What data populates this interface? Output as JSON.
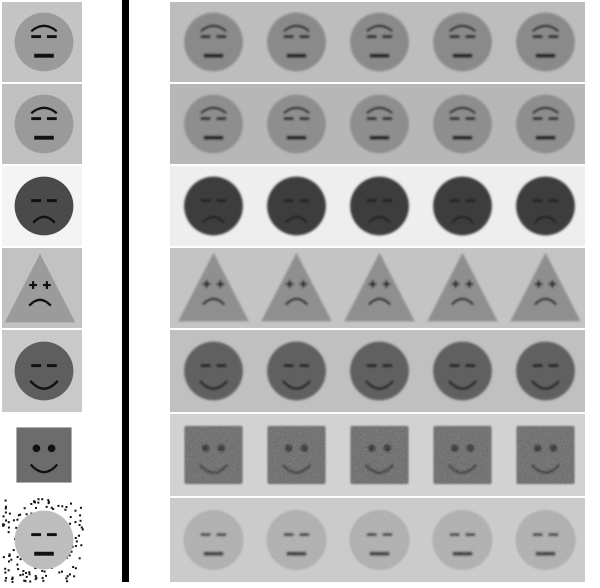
{
  "colors": {
    "page_background": "#ffffff",
    "divider": "#000000"
  },
  "rows": [
    {
      "row": 1,
      "template": {
        "shape": "circle",
        "background": "#c4c4c4",
        "fill": "#9a9a9a",
        "eyes": "lines",
        "mouth": "flat-bar",
        "brows": "arched"
      },
      "reconstructions": {
        "count": 5,
        "background": "#bdbdbd",
        "fill": "#8a8a8a",
        "blur": 1.0
      }
    },
    {
      "row": 2,
      "template": {
        "shape": "circle",
        "background": "#c0c0c0",
        "fill": "#9a9a9a",
        "eyes": "lines",
        "mouth": "flat-bar",
        "brows": "arched"
      },
      "reconstructions": {
        "count": 5,
        "background": "#b7b7b7",
        "fill": "#8e8e8e",
        "blur": 1.0
      }
    },
    {
      "row": 3,
      "template": {
        "shape": "circle",
        "background": "#f4f4f4",
        "fill": "#4a4a4a",
        "eyes": "lines",
        "mouth": "frown",
        "brows": "none"
      },
      "reconstructions": {
        "count": 5,
        "background": "#eeeeee",
        "fill": "#3e3e3e",
        "blur": 1.0
      }
    },
    {
      "row": 4,
      "template": {
        "shape": "triangle",
        "background": "#c2c2c2",
        "fill": "#9b9b9b",
        "eyes": "crosses",
        "mouth": "frown",
        "brows": "none"
      },
      "reconstructions": {
        "count": 5,
        "background": "#c4c4c4",
        "fill": "#8f8f8f",
        "blur": 1.1
      }
    },
    {
      "row": 5,
      "template": {
        "shape": "circle",
        "background": "#c9c9c9",
        "fill": "#5e5e5e",
        "eyes": "lines",
        "mouth": "smile",
        "brows": "none"
      },
      "reconstructions": {
        "count": 5,
        "background": "#c0c0c0",
        "fill": "#616161",
        "blur": 1.0
      }
    },
    {
      "row": 6,
      "template": {
        "shape": "square",
        "background": "#ffffff",
        "fill": "#6c6c6c",
        "eyes": "dots",
        "mouth": "smile",
        "brows": "none"
      },
      "reconstructions": {
        "count": 5,
        "background": "#d2d2d2",
        "fill": "#6a6a6a",
        "blur": 1.2
      }
    },
    {
      "row": 7,
      "template": {
        "shape": "circle",
        "background": "noise",
        "fill": "#bdbdbd",
        "eyes": "lines",
        "mouth": "flat-bar",
        "brows": "none"
      },
      "reconstructions": {
        "count": 5,
        "background": "#cbcbcb",
        "fill": "#b0b0b0",
        "blur": 1.3
      }
    }
  ]
}
